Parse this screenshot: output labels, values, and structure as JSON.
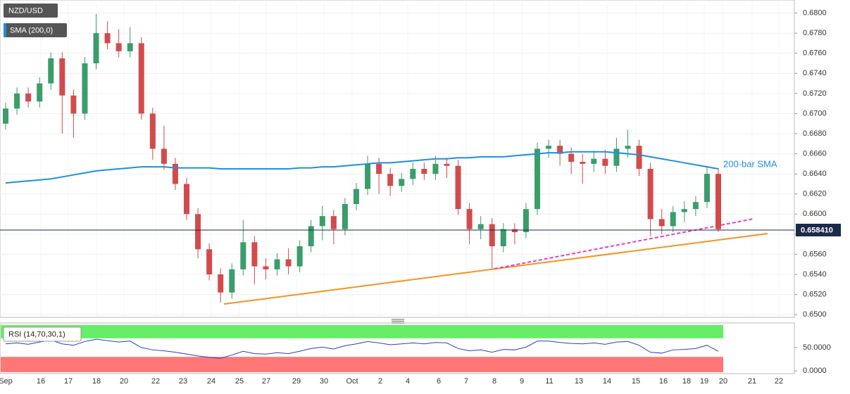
{
  "chart_data": {
    "type": "candlestick",
    "symbol": "NZD/USD",
    "indicator_label": "SMA (200,0)",
    "sma_annotation": "200-bar SMA",
    "up_color": "#3a9d6a",
    "down_color": "#d24b4b",
    "sma_color": "#1e8fe0",
    "ylim": [
      0.6498,
      0.6813
    ],
    "yticks": [
      {
        "value": 0.65,
        "label": "0.6500"
      },
      {
        "value": 0.652,
        "label": "0.6520"
      },
      {
        "value": 0.654,
        "label": "0.6540"
      },
      {
        "value": 0.656,
        "label": "0.6560"
      },
      {
        "value": 0.658,
        "label": "0.6580"
      },
      {
        "value": 0.66,
        "label": "0.6600"
      },
      {
        "value": 0.662,
        "label": "0.6620"
      },
      {
        "value": 0.664,
        "label": "0.6640"
      },
      {
        "value": 0.666,
        "label": "0.6660"
      },
      {
        "value": 0.668,
        "label": "0.6680"
      },
      {
        "value": 0.67,
        "label": "0.6700"
      },
      {
        "value": 0.672,
        "label": "0.6720"
      },
      {
        "value": 0.674,
        "label": "0.6740"
      },
      {
        "value": 0.676,
        "label": "0.6760"
      },
      {
        "value": 0.678,
        "label": "0.6780"
      },
      {
        "value": 0.68,
        "label": "0.6800"
      }
    ],
    "grid": true,
    "time_labels": [
      "Sep",
      "16",
      "17",
      "18",
      "20",
      "22",
      "23",
      "24",
      "25",
      "27",
      "29",
      "30",
      "Oct",
      "2",
      "4",
      "6",
      "7",
      "8",
      "9",
      "11",
      "13",
      "14",
      "15",
      "16",
      "18",
      "19",
      "20",
      "21",
      "22"
    ],
    "open": [
      0.669,
      0.6705,
      0.672,
      0.6712,
      0.673,
      0.6755,
      0.6718,
      0.67,
      0.675,
      0.678,
      0.677,
      0.6762,
      0.677,
      0.67,
      0.6665,
      0.665,
      0.663,
      0.66,
      0.6565,
      0.654,
      0.6522,
      0.6545,
      0.6572,
      0.6548,
      0.6545,
      0.6555,
      0.6548,
      0.6568,
      0.6588,
      0.6598,
      0.6585,
      0.661,
      0.6625,
      0.665,
      0.664,
      0.6628,
      0.6635,
      0.6645,
      0.664,
      0.665,
      0.6648,
      0.6605,
      0.6585,
      0.659,
      0.6568,
      0.6585,
      0.6582,
      0.6605,
      0.6665,
      0.6668,
      0.666,
      0.6652,
      0.665,
      0.6655,
      0.6648,
      0.6665,
      0.6668,
      0.6645,
      0.6595,
      0.6588,
      0.6602,
      0.6605,
      0.6612,
      0.664
    ],
    "high": [
      0.6711,
      0.6726,
      0.6726,
      0.6736,
      0.6761,
      0.6761,
      0.6724,
      0.6756,
      0.6799,
      0.6792,
      0.6784,
      0.6786,
      0.6776,
      0.6706,
      0.6688,
      0.6656,
      0.6636,
      0.6606,
      0.6571,
      0.6546,
      0.6551,
      0.6594,
      0.6578,
      0.6556,
      0.6561,
      0.6566,
      0.6574,
      0.6594,
      0.6608,
      0.6604,
      0.6616,
      0.6631,
      0.6658,
      0.6656,
      0.6646,
      0.6641,
      0.6651,
      0.6651,
      0.6658,
      0.6656,
      0.6654,
      0.6611,
      0.6598,
      0.6596,
      0.6591,
      0.6591,
      0.6611,
      0.6671,
      0.6674,
      0.6674,
      0.6666,
      0.666,
      0.6663,
      0.6664,
      0.6676,
      0.6684,
      0.6674,
      0.6651,
      0.6605,
      0.6608,
      0.6613,
      0.6618,
      0.6648,
      0.6646
    ],
    "low": [
      0.6684,
      0.6699,
      0.6706,
      0.6706,
      0.6724,
      0.668,
      0.6676,
      0.6694,
      0.6744,
      0.6764,
      0.6756,
      0.6756,
      0.6694,
      0.6654,
      0.6644,
      0.6624,
      0.6594,
      0.6556,
      0.6534,
      0.6512,
      0.6516,
      0.6539,
      0.653,
      0.6535,
      0.6539,
      0.654,
      0.6542,
      0.6562,
      0.6574,
      0.657,
      0.6579,
      0.6604,
      0.6619,
      0.662,
      0.6618,
      0.6622,
      0.6629,
      0.6634,
      0.6634,
      0.6636,
      0.6599,
      0.657,
      0.6575,
      0.6546,
      0.6562,
      0.657,
      0.6576,
      0.6599,
      0.6656,
      0.6648,
      0.664,
      0.663,
      0.6642,
      0.664,
      0.6642,
      0.6656,
      0.6638,
      0.6578,
      0.658,
      0.6582,
      0.6592,
      0.6598,
      0.6606,
      0.6582
    ],
    "close": [
      0.6705,
      0.672,
      0.6712,
      0.673,
      0.6755,
      0.6718,
      0.67,
      0.675,
      0.678,
      0.677,
      0.6762,
      0.677,
      0.67,
      0.6665,
      0.665,
      0.663,
      0.66,
      0.6565,
      0.654,
      0.6522,
      0.6545,
      0.6572,
      0.6548,
      0.6545,
      0.6555,
      0.6548,
      0.6568,
      0.6588,
      0.6598,
      0.6585,
      0.661,
      0.6625,
      0.665,
      0.664,
      0.6628,
      0.6635,
      0.6645,
      0.664,
      0.665,
      0.6648,
      0.6605,
      0.6585,
      0.659,
      0.6568,
      0.6585,
      0.6582,
      0.6605,
      0.6665,
      0.6668,
      0.666,
      0.6652,
      0.665,
      0.6655,
      0.6648,
      0.6665,
      0.6668,
      0.6645,
      0.6595,
      0.6588,
      0.6602,
      0.6605,
      0.6612,
      0.664,
      0.6585
    ],
    "sma": [
      0.6631,
      0.6632,
      0.6633,
      0.6634,
      0.6635,
      0.6637,
      0.6639,
      0.6641,
      0.6643,
      0.6644,
      0.6645,
      0.6646,
      0.6647,
      0.6647,
      0.6647,
      0.6646,
      0.6646,
      0.6646,
      0.6646,
      0.6645,
      0.6645,
      0.6645,
      0.6645,
      0.6645,
      0.6645,
      0.6645,
      0.6646,
      0.6646,
      0.6647,
      0.6647,
      0.6648,
      0.6649,
      0.665,
      0.6651,
      0.6651,
      0.6652,
      0.6653,
      0.6654,
      0.6655,
      0.6655,
      0.6656,
      0.6656,
      0.6657,
      0.6657,
      0.6657,
      0.6658,
      0.6659,
      0.666,
      0.6661,
      0.6661,
      0.6662,
      0.6662,
      0.6662,
      0.6662,
      0.6661,
      0.666,
      0.6659,
      0.6657,
      0.6655,
      0.6653,
      0.6651,
      0.6649,
      0.6647,
      0.6645
    ],
    "support_line": {
      "color": "#f7931e",
      "values": [
        0.65105,
        0.65806
      ]
    },
    "inner_support_line": {
      "color": "#e040d0",
      "values": [
        0.65456,
        0.65953
      ]
    },
    "last_price": {
      "value": 0.65841,
      "label": "0.658410"
    },
    "rsi": {
      "label": "RSI (14,70,30,1)",
      "color": "#2a3fbf",
      "upper": 70,
      "lower": 30,
      "upper_color": "#66ee66",
      "lower_color": "#ff7777",
      "ylim": [
        -4.5,
        101.5
      ],
      "yticks": [
        {
          "value": 50,
          "label": "50.0000"
        },
        {
          "value": 0,
          "label": "0.0000"
        }
      ],
      "values": [
        58,
        60,
        57,
        62,
        66,
        58,
        55,
        63,
        68,
        65,
        62,
        64,
        50,
        45,
        43,
        40,
        36,
        32,
        29,
        27,
        34,
        42,
        37,
        36,
        39,
        37,
        42,
        48,
        51,
        47,
        54,
        58,
        63,
        60,
        56,
        58,
        60,
        58,
        61,
        60,
        48,
        43,
        45,
        40,
        46,
        45,
        51,
        64,
        64,
        61,
        59,
        58,
        60,
        57,
        62,
        63,
        55,
        40,
        38,
        45,
        46,
        48,
        55,
        42
      ]
    }
  }
}
